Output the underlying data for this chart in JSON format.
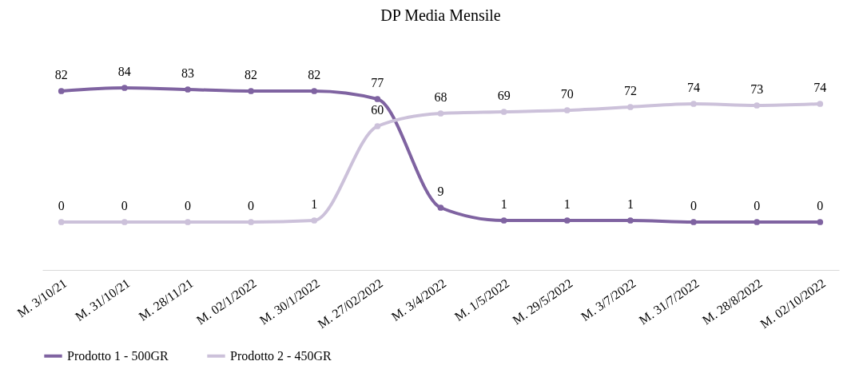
{
  "chart_data": {
    "type": "line",
    "title": "DP Media Mensile",
    "categories": [
      "M. 3/10/21",
      "M. 31/10/21",
      "M. 28/11/21",
      "M. 02/1/2022",
      "M. 30/1/2022",
      "M. 27/02/2022",
      "M. 3/4/2022",
      "M. 1/5/2022",
      "M. 29/5/2022",
      "M. 3/7/2022",
      "M. 31/7/2022",
      "M. 28/8/2022",
      "M. 02/10/2022"
    ],
    "series": [
      {
        "name": "Prodotto 1 - 500GR",
        "color": "#7f63a1",
        "values": [
          82,
          84,
          83,
          82,
          82,
          77,
          9,
          1,
          1,
          1,
          0,
          0,
          0
        ]
      },
      {
        "name": "Prodotto 2 - 450GR",
        "color": "#ccc1da",
        "values": [
          0,
          0,
          0,
          0,
          1,
          60,
          68,
          69,
          70,
          72,
          74,
          73,
          74
        ]
      }
    ],
    "data_labels": true,
    "marker": "circle",
    "line_style": "solid",
    "grid": false,
    "legend": "bottom"
  }
}
